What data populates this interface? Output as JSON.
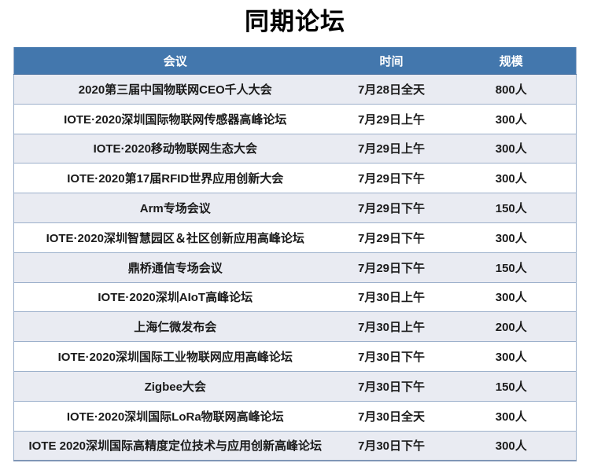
{
  "page_title": "同期论坛",
  "colors": {
    "page_bg": "#ffffff",
    "title_color": "#000000",
    "header_bg": "#4377ad",
    "header_text": "#ffffff",
    "header_divider": "#3a6699",
    "row_bg": "#ffffff",
    "row_alt_bg": "#e9ebf2",
    "border_color": "#9cb0cb",
    "outer_border_color": "#7f96b6"
  },
  "table": {
    "columns": [
      {
        "key": "conference",
        "label": "会议"
      },
      {
        "key": "time",
        "label": "时间"
      },
      {
        "key": "scale",
        "label": "规模"
      }
    ],
    "rows": [
      {
        "conference": "2020第三届中国物联网CEO千人大会",
        "time": "7月28日全天",
        "scale": "800人"
      },
      {
        "conference": "IOTE·2020深圳国际物联网传感器高峰论坛",
        "time": "7月29日上午",
        "scale": "300人"
      },
      {
        "conference": "IOTE·2020移动物联网生态大会",
        "time": "7月29日上午",
        "scale": "300人"
      },
      {
        "conference": "IOTE·2020第17届RFID世界应用创新大会",
        "time": "7月29日下午",
        "scale": "300人"
      },
      {
        "conference": "Arm专场会议",
        "time": "7月29日下午",
        "scale": "150人"
      },
      {
        "conference": "IOTE·2020深圳智慧园区＆社区创新应用高峰论坛",
        "time": "7月29日下午",
        "scale": "300人"
      },
      {
        "conference": "鼎桥通信专场会议",
        "time": "7月29日下午",
        "scale": "150人"
      },
      {
        "conference": "IOTE·2020深圳AIoT高峰论坛",
        "time": "7月30日上午",
        "scale": "300人"
      },
      {
        "conference": "上海仁微发布会",
        "time": "7月30日上午",
        "scale": "200人"
      },
      {
        "conference": "IOTE·2020深圳国际工业物联网应用高峰论坛",
        "time": "7月30日下午",
        "scale": "300人"
      },
      {
        "conference": "Zigbee大会",
        "time": "7月30日下午",
        "scale": "150人"
      },
      {
        "conference": "IOTE·2020深圳国际LoRa物联网高峰论坛",
        "time": "7月30日全天",
        "scale": "300人"
      },
      {
        "conference": "IOTE 2020深圳国际高精度定位技术与应用创新高峰论坛",
        "time": "7月30日下午",
        "scale": "300人"
      }
    ]
  }
}
